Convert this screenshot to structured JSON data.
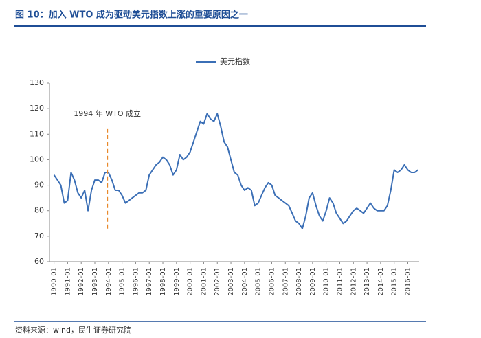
{
  "chart_data": {
    "type": "line",
    "title": "图 10：加入 WTO 成为驱动美元指数上涨的重要原因之一",
    "source": "资料来源：wind，民生证券研究院",
    "legend": "top",
    "x": [
      "1990-01",
      "1990-04",
      "1990-07",
      "1990-10",
      "1991-01",
      "1991-04",
      "1991-07",
      "1991-10",
      "1992-01",
      "1992-04",
      "1992-07",
      "1992-10",
      "1993-01",
      "1993-04",
      "1993-07",
      "1993-10",
      "1994-01",
      "1994-04",
      "1994-07",
      "1994-10",
      "1995-01",
      "1995-04",
      "1995-07",
      "1995-10",
      "1996-01",
      "1996-04",
      "1996-07",
      "1996-10",
      "1997-01",
      "1997-04",
      "1997-07",
      "1997-10",
      "1998-01",
      "1998-04",
      "1998-07",
      "1998-10",
      "1999-01",
      "1999-04",
      "1999-07",
      "1999-10",
      "2000-01",
      "2000-04",
      "2000-07",
      "2000-10",
      "2001-01",
      "2001-04",
      "2001-07",
      "2001-10",
      "2002-01",
      "2002-04",
      "2002-07",
      "2002-10",
      "2003-01",
      "2003-04",
      "2003-07",
      "2003-10",
      "2004-01",
      "2004-04",
      "2004-07",
      "2004-10",
      "2005-01",
      "2005-04",
      "2005-07",
      "2005-10",
      "2006-01",
      "2006-04",
      "2006-07",
      "2006-10",
      "2007-01",
      "2007-04",
      "2007-07",
      "2007-10",
      "2008-01",
      "2008-04",
      "2008-07",
      "2008-10",
      "2009-01",
      "2009-04",
      "2009-07",
      "2009-10",
      "2010-01",
      "2010-04",
      "2010-07",
      "2010-10",
      "2011-01",
      "2011-04",
      "2011-07",
      "2011-10",
      "2012-01",
      "2012-04",
      "2012-07",
      "2012-10",
      "2013-01",
      "2013-04",
      "2013-07",
      "2013-10",
      "2014-01",
      "2014-04",
      "2014-07",
      "2014-10",
      "2015-01",
      "2015-04",
      "2015-07",
      "2015-10",
      "2016-01",
      "2016-04",
      "2016-07",
      "2016-10"
    ],
    "series": [
      {
        "name": "美元指数",
        "color": "#3b6fb6",
        "values": [
          94,
          92,
          90,
          83,
          84,
          95,
          92,
          87,
          85,
          88,
          80,
          88,
          92,
          92,
          91,
          95,
          95,
          92,
          88,
          88,
          86,
          83,
          84,
          85,
          86,
          87,
          87,
          88,
          94,
          96,
          98,
          99,
          101,
          100,
          98,
          94,
          96,
          102,
          100,
          101,
          103,
          107,
          111,
          115,
          114,
          118,
          116,
          115,
          118,
          113,
          107,
          105,
          100,
          95,
          94,
          90,
          88,
          89,
          88,
          82,
          83,
          86,
          89,
          91,
          90,
          86,
          85,
          84,
          83,
          82,
          79,
          76,
          75,
          73,
          78,
          85,
          87,
          82,
          78,
          76,
          80,
          85,
          83,
          79,
          77,
          75,
          76,
          78,
          80,
          81,
          80,
          79,
          81,
          83,
          81,
          80,
          80,
          80,
          82,
          88,
          96,
          95,
          96,
          98,
          96,
          95,
          95,
          96
        ]
      }
    ],
    "xlim": [
      "1989-09",
      "2016-11"
    ],
    "xticks": [
      "1990-01",
      "1991-01",
      "1992-01",
      "1993-01",
      "1994-01",
      "1995-01",
      "1996-01",
      "1997-01",
      "1998-01",
      "1999-01",
      "2000-01",
      "2001-01",
      "2002-01",
      "2003-01",
      "2004-01",
      "2005-01",
      "2006-01",
      "2007-01",
      "2008-01",
      "2009-01",
      "2010-01",
      "2011-01",
      "2012-01",
      "2013-01",
      "2014-01",
      "2015-01",
      "2016-01"
    ],
    "ylim": [
      60,
      130
    ],
    "yticks": [
      60,
      70,
      80,
      90,
      100,
      110,
      120,
      130
    ],
    "grid": false,
    "annotations": [
      {
        "text": "1994 年 WTO 成立",
        "x": "1993-12",
        "y_range": [
          73,
          112
        ],
        "color": "#e8892b"
      }
    ]
  }
}
